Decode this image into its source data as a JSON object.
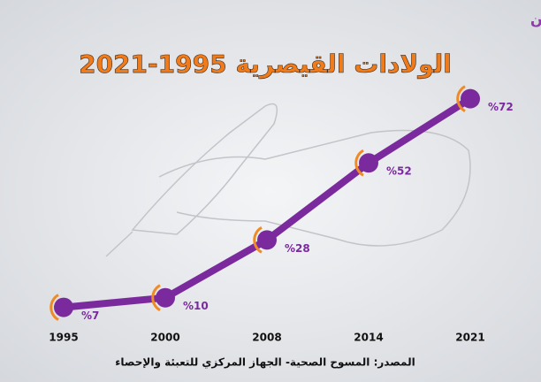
{
  "chart_data": {
    "type": "line",
    "title": "الولادات القيصرية 1995-2021",
    "categories": [
      "1995",
      "2000",
      "2008",
      "2014",
      "2021"
    ],
    "values": [
      7,
      10,
      28,
      52,
      72
    ],
    "value_labels": [
      "%7",
      "%10",
      "%28",
      "%52",
      "%72"
    ],
    "color": "#7b2a9e",
    "marker_accent": "#f08a24",
    "source": "المصدر: المسوح الصحية- الجهاز المركزي للتعبئة والإحصاء",
    "logo": "شريكة ولكن"
  }
}
